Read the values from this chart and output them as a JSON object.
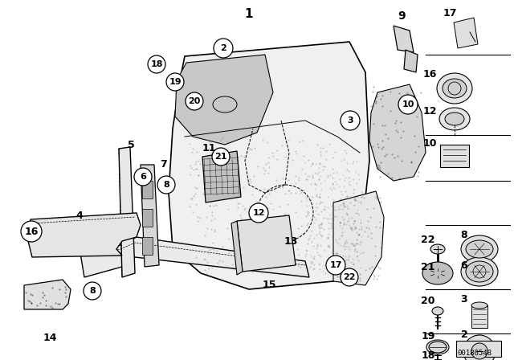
{
  "bg_color": "#ffffff",
  "figsize": [
    6.4,
    4.48
  ],
  "dpi": 100,
  "watermark": "00180548"
}
